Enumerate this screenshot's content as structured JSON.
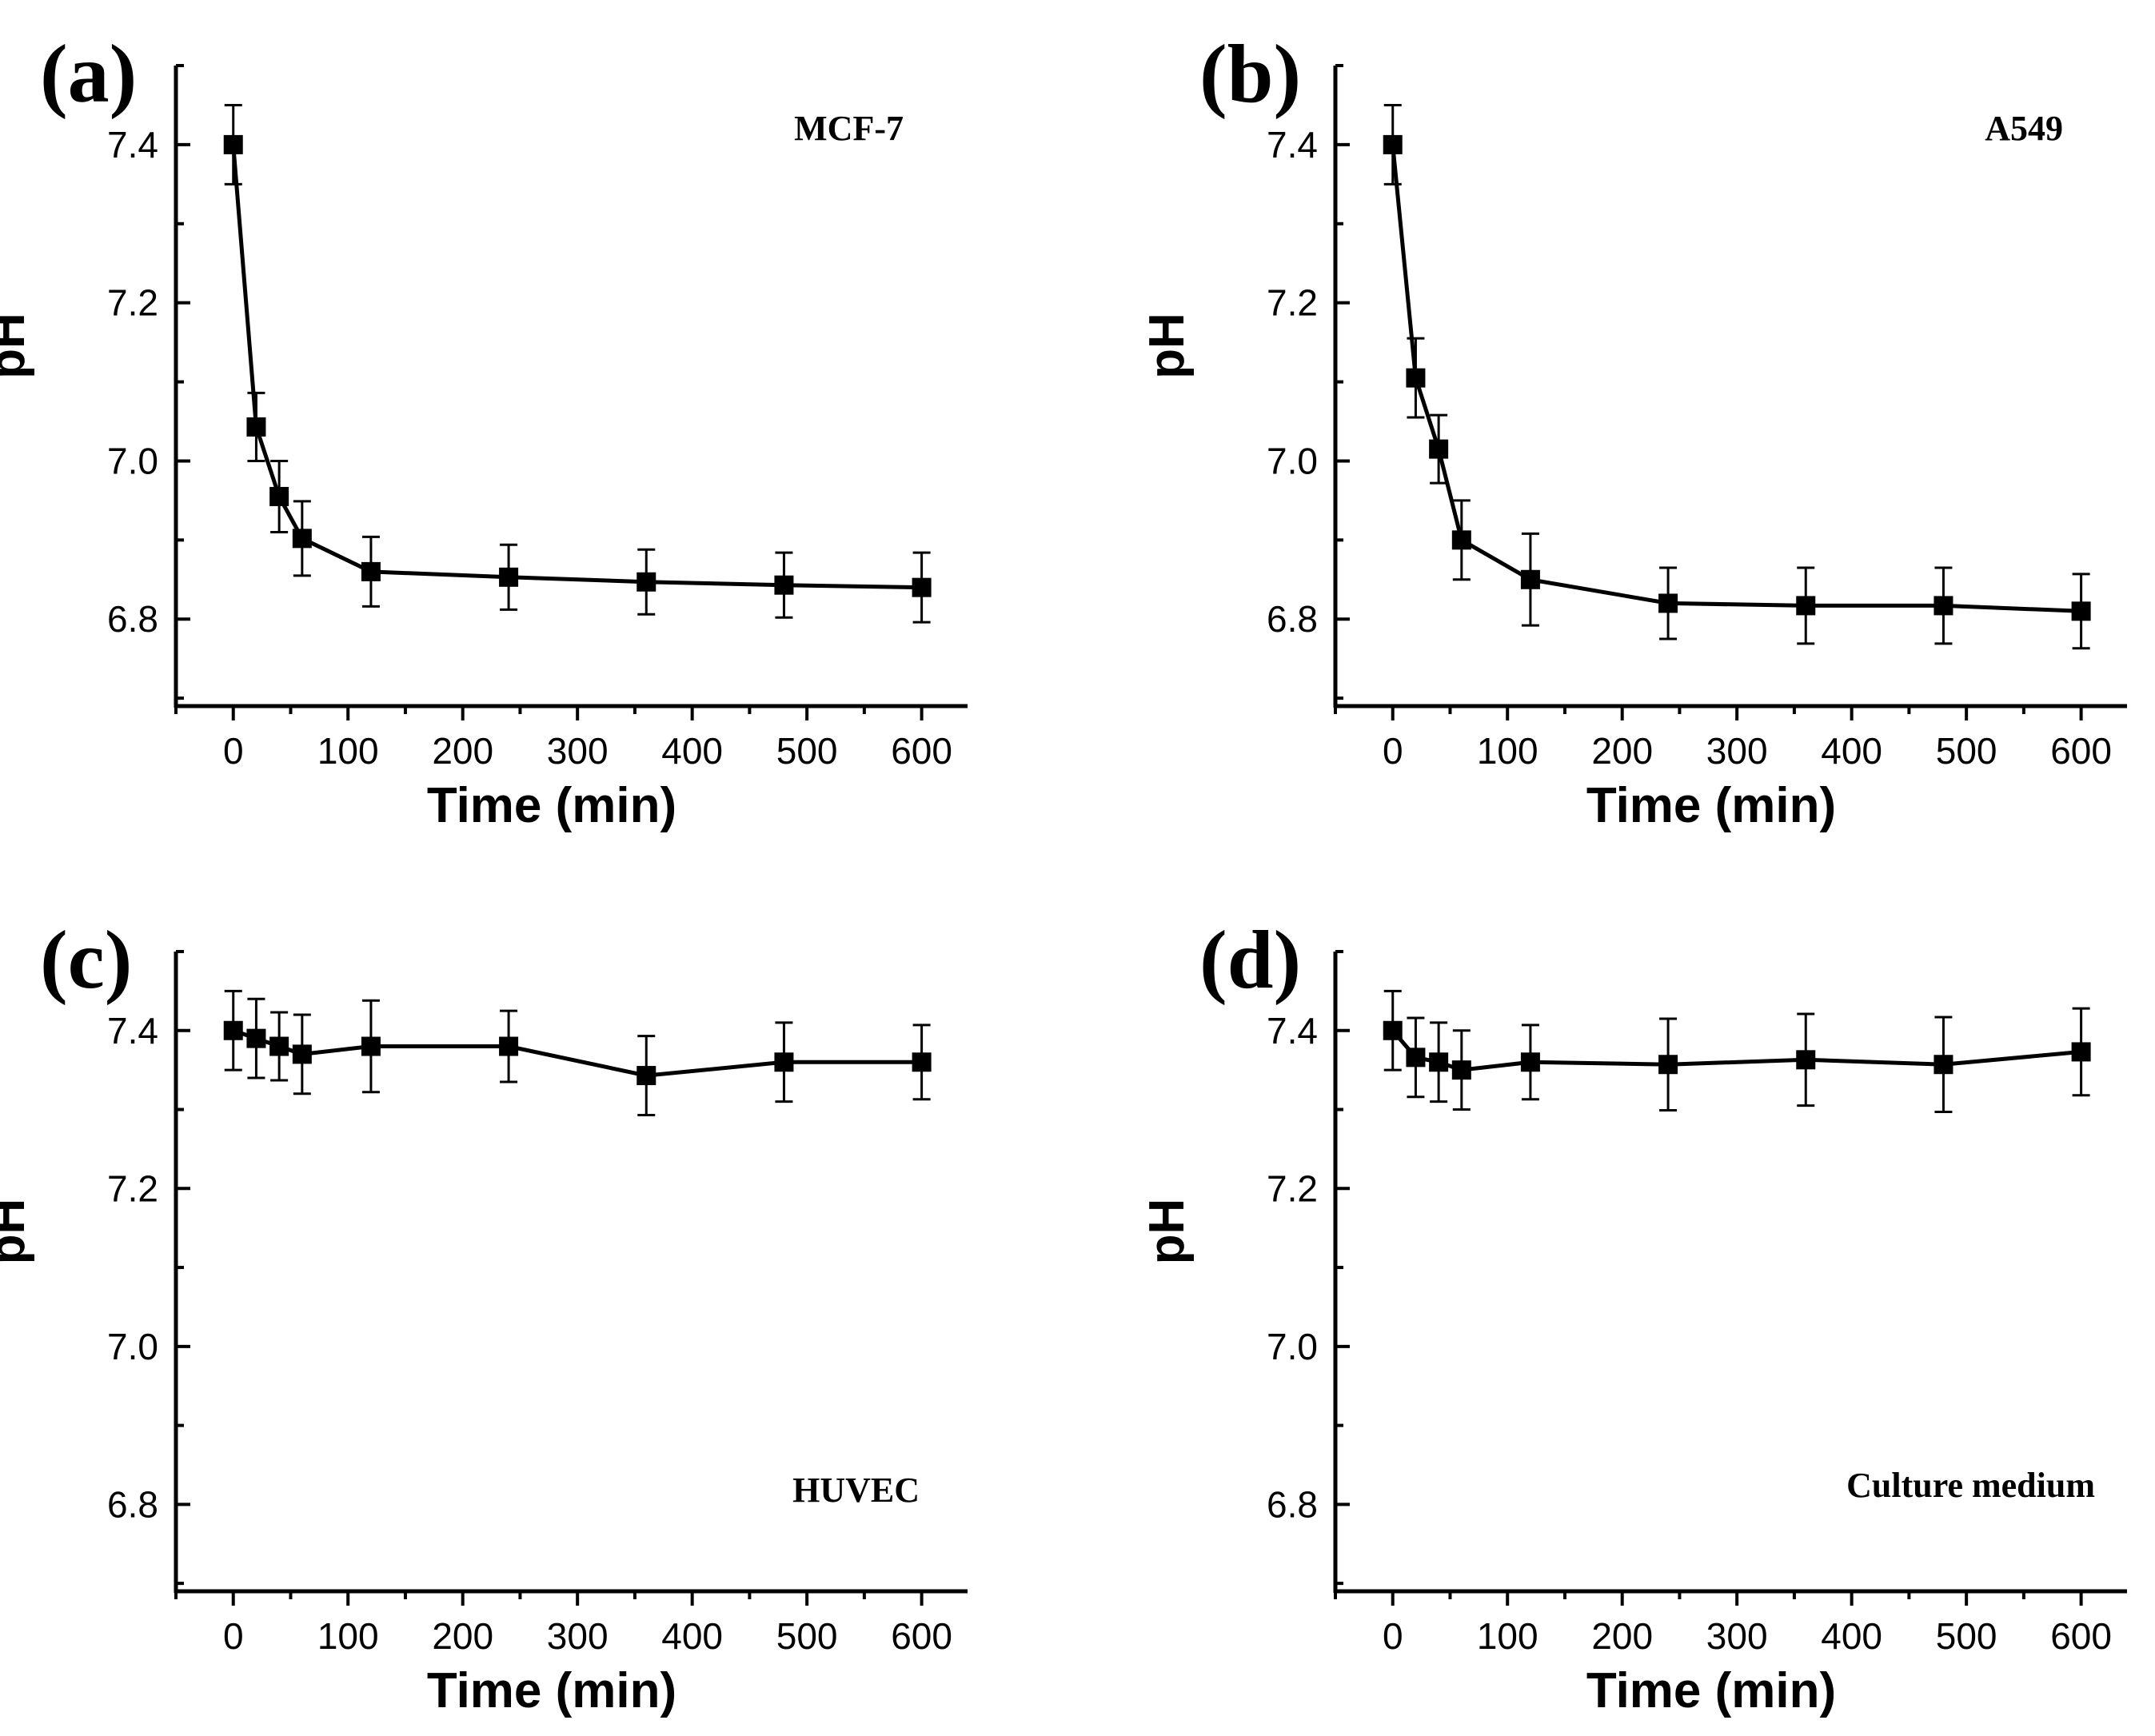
{
  "chart_data": [
    {
      "panel_label": "(a)",
      "type": "line",
      "annotation": "MCF-7",
      "xlabel": "Time (min)",
      "ylabel": "pH",
      "xlim": [
        -50,
        640
      ],
      "ylim": [
        6.69,
        7.5
      ],
      "xticks": [
        0,
        100,
        200,
        300,
        400,
        500,
        600
      ],
      "yticks": [
        6.8,
        7.0,
        7.2,
        7.4
      ],
      "series": [
        {
          "name": "MCF-7",
          "x": [
            0,
            20,
            40,
            60,
            120,
            240,
            360,
            480,
            600
          ],
          "y": [
            7.4,
            7.043,
            6.955,
            6.902,
            6.86,
            6.853,
            6.847,
            6.843,
            6.84
          ],
          "err": [
            0.05,
            0.043,
            0.045,
            0.047,
            0.044,
            0.041,
            0.041,
            0.041,
            0.044
          ]
        }
      ]
    },
    {
      "panel_label": "(b)",
      "type": "line",
      "annotation": "A549",
      "xlabel": "Time (min)",
      "ylabel": "pH",
      "xlim": [
        -50,
        640
      ],
      "ylim": [
        6.69,
        7.5
      ],
      "xticks": [
        0,
        100,
        200,
        300,
        400,
        500,
        600
      ],
      "yticks": [
        6.8,
        7.0,
        7.2,
        7.4
      ],
      "series": [
        {
          "name": "A549",
          "x": [
            0,
            20,
            40,
            60,
            120,
            240,
            360,
            480,
            600
          ],
          "y": [
            7.4,
            7.105,
            7.015,
            6.9,
            6.85,
            6.82,
            6.817,
            6.817,
            6.81
          ],
          "err": [
            0.05,
            0.05,
            0.043,
            0.05,
            0.058,
            0.045,
            0.048,
            0.048,
            0.047
          ]
        }
      ]
    },
    {
      "panel_label": "(c)",
      "type": "line",
      "annotation": "HUVEC",
      "xlabel": "Time (min)",
      "ylabel": "pH",
      "xlim": [
        -50,
        640
      ],
      "ylim": [
        6.69,
        7.5
      ],
      "xticks": [
        0,
        100,
        200,
        300,
        400,
        500,
        600
      ],
      "yticks": [
        6.8,
        7.0,
        7.2,
        7.4
      ],
      "series": [
        {
          "name": "HUVEC",
          "x": [
            0,
            20,
            40,
            60,
            120,
            240,
            360,
            480,
            600
          ],
          "y": [
            7.4,
            7.39,
            7.38,
            7.37,
            7.38,
            7.38,
            7.343,
            7.36,
            7.36
          ],
          "err": [
            0.05,
            0.05,
            0.043,
            0.05,
            0.058,
            0.045,
            0.05,
            0.05,
            0.047
          ]
        }
      ]
    },
    {
      "panel_label": "(d)",
      "type": "line",
      "annotation": "Culture medium",
      "xlabel": "Time (min)",
      "ylabel": "pH",
      "xlim": [
        -50,
        640
      ],
      "ylim": [
        6.69,
        7.5
      ],
      "xticks": [
        0,
        100,
        200,
        300,
        400,
        500,
        600
      ],
      "yticks": [
        6.8,
        7.0,
        7.2,
        7.4
      ],
      "series": [
        {
          "name": "Culture medium",
          "x": [
            0,
            20,
            40,
            60,
            120,
            240,
            360,
            480,
            600
          ],
          "y": [
            7.4,
            7.366,
            7.36,
            7.35,
            7.36,
            7.357,
            7.363,
            7.357,
            7.373
          ],
          "err": [
            0.05,
            0.05,
            0.05,
            0.05,
            0.047,
            0.058,
            0.058,
            0.06,
            0.055
          ]
        }
      ]
    }
  ]
}
